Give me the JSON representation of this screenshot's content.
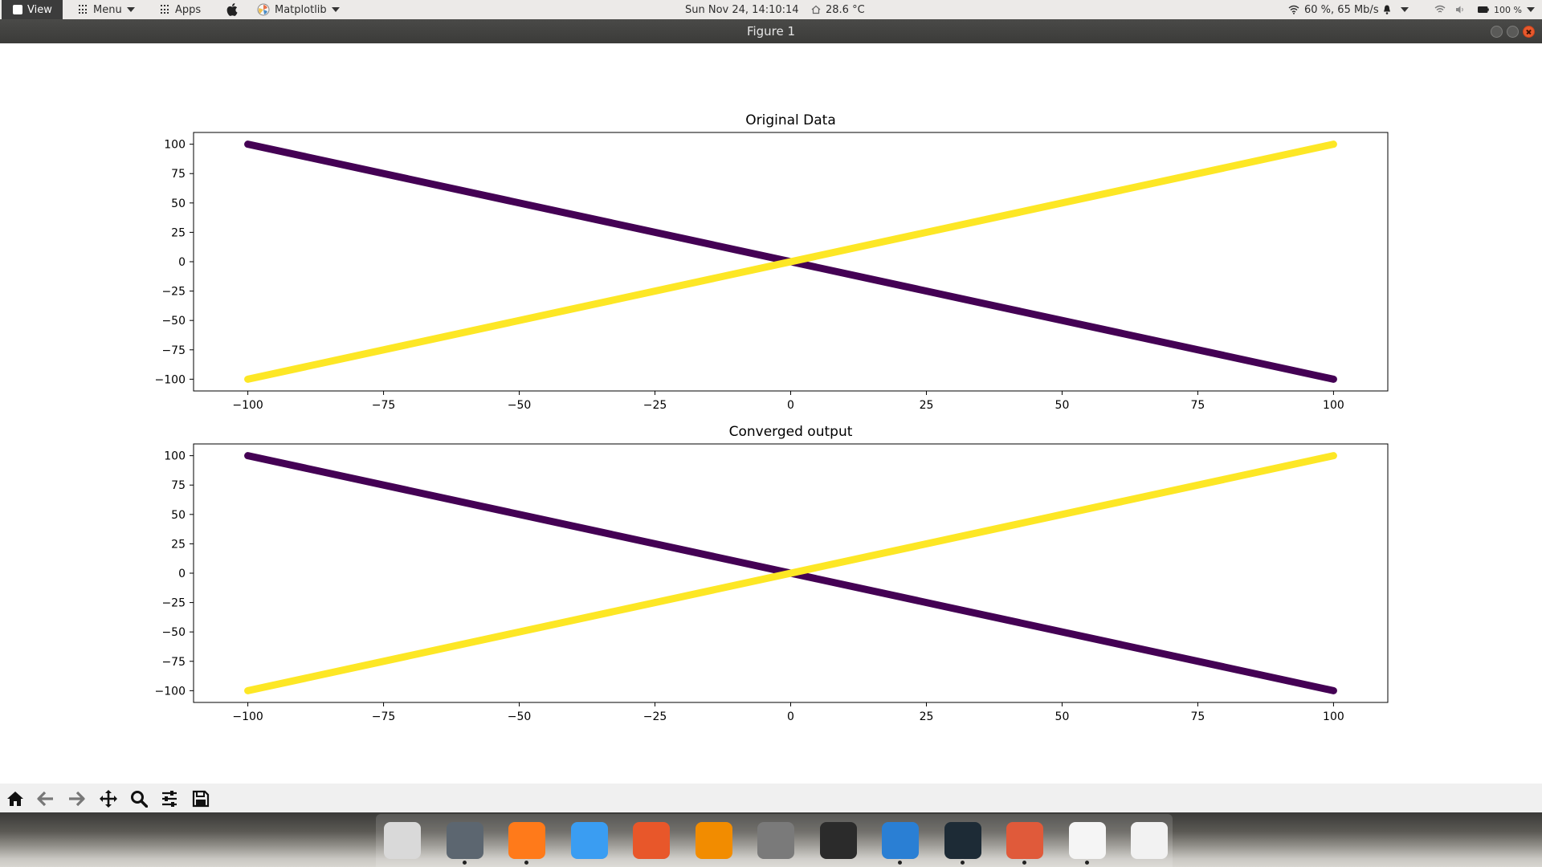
{
  "topbar": {
    "view_label": "View",
    "menu_label": "Menu",
    "apps_label": "Apps",
    "app_name": "Matplotlib",
    "datetime": "Sun Nov 24, 14:10:14",
    "temperature": "28.6 °C",
    "network": "60 %, 65 Mb/s",
    "battery": "100 %"
  },
  "window": {
    "title": "Figure 1"
  },
  "chart_data": [
    {
      "type": "line",
      "title": "Original Data",
      "xlabel": "",
      "ylabel": "",
      "xlim": [
        -110,
        110
      ],
      "ylim": [
        -110,
        110
      ],
      "xticks": [
        -100,
        -75,
        -50,
        -25,
        0,
        25,
        50,
        75,
        100
      ],
      "yticks": [
        -100,
        -75,
        -50,
        -25,
        0,
        25,
        50,
        75,
        100
      ],
      "xtick_labels": [
        "−100",
        "−75",
        "−50",
        "−25",
        "0",
        "25",
        "50",
        "75",
        "100"
      ],
      "ytick_labels": [
        "−100",
        "−75",
        "−50",
        "−25",
        "0",
        "25",
        "50",
        "75",
        "100"
      ],
      "grid": false,
      "series": [
        {
          "color": "#440154",
          "x": [
            -100,
            100
          ],
          "y": [
            100,
            -100
          ]
        },
        {
          "color": "#fde725",
          "x": [
            -100,
            100
          ],
          "y": [
            -100,
            100
          ]
        }
      ]
    },
    {
      "type": "line",
      "title": "Converged output",
      "xlabel": "",
      "ylabel": "",
      "xlim": [
        -110,
        110
      ],
      "ylim": [
        -110,
        110
      ],
      "xticks": [
        -100,
        -75,
        -50,
        -25,
        0,
        25,
        50,
        75,
        100
      ],
      "yticks": [
        -100,
        -75,
        -50,
        -25,
        0,
        25,
        50,
        75,
        100
      ],
      "xtick_labels": [
        "−100",
        "−75",
        "−50",
        "−25",
        "0",
        "25",
        "50",
        "75",
        "100"
      ],
      "ytick_labels": [
        "−100",
        "−75",
        "−50",
        "−25",
        "0",
        "25",
        "50",
        "75",
        "100"
      ],
      "grid": false,
      "series": [
        {
          "color": "#440154",
          "x": [
            -100,
            100
          ],
          "y": [
            100,
            -100
          ]
        },
        {
          "color": "#fde725",
          "x": [
            -100,
            100
          ],
          "y": [
            -100,
            100
          ]
        }
      ]
    }
  ],
  "toolbar": {
    "tools": [
      "home-icon",
      "back-arrow-icon",
      "forward-arrow-icon",
      "pan-icon",
      "zoom-icon",
      "configure-subplots-icon",
      "save-icon"
    ]
  },
  "dock": {
    "apps": [
      {
        "icon": "installer-icon",
        "color": "#d9d9d9",
        "running": false
      },
      {
        "icon": "system-settings-icon",
        "color": "#5c6670",
        "running": true
      },
      {
        "icon": "firefox-icon",
        "color": "#ff7a1a",
        "running": true
      },
      {
        "icon": "finder-icon",
        "color": "#3a9df2",
        "running": false
      },
      {
        "icon": "gimp-icon",
        "color": "#e8572a",
        "running": false
      },
      {
        "icon": "vlc-icon",
        "color": "#f28c00",
        "running": false
      },
      {
        "icon": "settings-gear-icon",
        "color": "#7a7a7a",
        "running": false
      },
      {
        "icon": "terminal-icon",
        "color": "#2b2b2b",
        "running": false
      },
      {
        "icon": "vscode-icon",
        "color": "#2a7fd4",
        "running": true
      },
      {
        "icon": "stacer-icon",
        "color": "#1d2b36",
        "running": true
      },
      {
        "icon": "screenshot-icon",
        "color": "#e05a3a",
        "running": true
      },
      {
        "icon": "pinwheel-icon",
        "color": "#f5f5f5",
        "running": true
      },
      {
        "icon": "network-app-icon",
        "color": "#f2f2f2",
        "running": false
      }
    ]
  }
}
